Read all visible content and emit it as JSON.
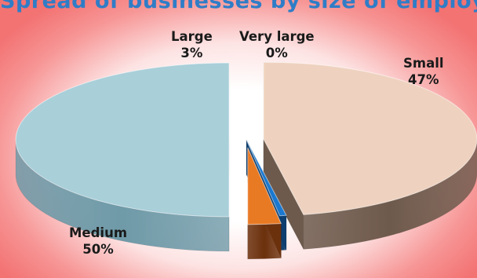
{
  "title": "Spread of businesses by size of employer",
  "chart_data": {
    "type": "pie",
    "title": "Spread of businesses by size of employer",
    "slices": [
      {
        "label": "Small",
        "value": 47,
        "display": "47%",
        "color": "#eed2bf",
        "side": "#6e5a4c",
        "exploded": true
      },
      {
        "label": "Very large",
        "value": 0.5,
        "display": "0%",
        "color": "#1a78d0",
        "side": "#0d3f70",
        "exploded": false
      },
      {
        "label": "Large",
        "value": 2.5,
        "display": "3%",
        "color": "#e97a24",
        "side": "#6b300c",
        "exploded": true
      },
      {
        "label": "Medium",
        "value": 50,
        "display": "50%",
        "color": "#a9cfd9",
        "side": "#6f9aa8",
        "exploded": true
      }
    ],
    "three_d": true,
    "legend": "none",
    "data_labels": "category-and-percent"
  }
}
